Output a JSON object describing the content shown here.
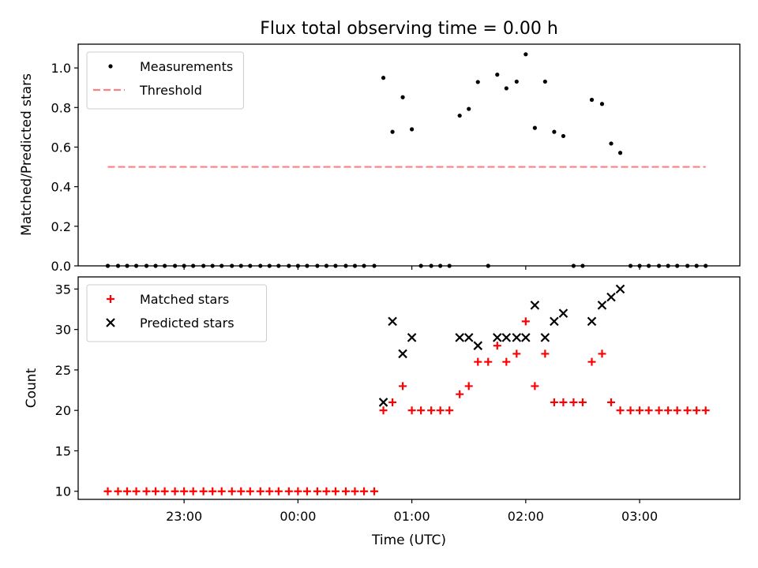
{
  "chart_data": [
    {
      "type": "scatter",
      "title": "Flux total observing time = 0.00 h",
      "xlabel": "",
      "ylabel": "Matched/Predicted stars",
      "ylim": [
        0,
        1.12
      ],
      "yticks": [
        0.0,
        0.2,
        0.4,
        0.6,
        0.8,
        1.0
      ],
      "ytick_labels": [
        "0.0",
        "0.2",
        "0.4",
        "0.6",
        "0.8",
        "1.0"
      ],
      "legend_position": "top-left",
      "series": [
        {
          "name": "Measurements",
          "marker": "dot",
          "color": "#000000",
          "points": [
            [
              -1.67,
              0
            ],
            [
              -1.58,
              0
            ],
            [
              -1.5,
              0
            ],
            [
              -1.42,
              0
            ],
            [
              -1.33,
              0
            ],
            [
              -1.25,
              0
            ],
            [
              -1.17,
              0
            ],
            [
              -1.08,
              0
            ],
            [
              -1.0,
              0
            ],
            [
              -0.92,
              0
            ],
            [
              -0.83,
              0
            ],
            [
              -0.75,
              0
            ],
            [
              -0.67,
              0
            ],
            [
              -0.58,
              0
            ],
            [
              -0.5,
              0
            ],
            [
              -0.42,
              0
            ],
            [
              -0.33,
              0
            ],
            [
              -0.25,
              0
            ],
            [
              -0.17,
              0
            ],
            [
              -0.08,
              0
            ],
            [
              0.0,
              0
            ],
            [
              0.08,
              0
            ],
            [
              0.17,
              0
            ],
            [
              0.25,
              0
            ],
            [
              0.33,
              0
            ],
            [
              0.42,
              0
            ],
            [
              0.5,
              0
            ],
            [
              0.58,
              0
            ],
            [
              0.67,
              0
            ],
            [
              0.75,
              0.95
            ],
            [
              0.83,
              0.677
            ],
            [
              0.92,
              0.852
            ],
            [
              1.0,
              0.69
            ],
            [
              1.08,
              0
            ],
            [
              1.17,
              0
            ],
            [
              1.25,
              0
            ],
            [
              1.33,
              0
            ],
            [
              1.42,
              0.759
            ],
            [
              1.5,
              0.793
            ],
            [
              1.58,
              0.929
            ],
            [
              1.67,
              0
            ],
            [
              1.75,
              0.966
            ],
            [
              1.83,
              0.897
            ],
            [
              1.92,
              0.931
            ],
            [
              2.0,
              1.069
            ],
            [
              2.08,
              0.697
            ],
            [
              2.17,
              0.931
            ],
            [
              2.25,
              0.677
            ],
            [
              2.33,
              0.656
            ],
            [
              2.42,
              0
            ],
            [
              2.5,
              0
            ],
            [
              2.58,
              0.839
            ],
            [
              2.67,
              0.818
            ],
            [
              2.75,
              0.618
            ],
            [
              2.83,
              0.571
            ],
            [
              2.92,
              0
            ],
            [
              3.0,
              0
            ],
            [
              3.08,
              0
            ],
            [
              3.17,
              0
            ],
            [
              3.25,
              0
            ],
            [
              3.33,
              0
            ],
            [
              3.42,
              0
            ],
            [
              3.5,
              0
            ],
            [
              3.58,
              0
            ]
          ]
        },
        {
          "name": "Threshold",
          "marker": "dashed-line",
          "color": "#ff7f7f",
          "points": [
            [
              -1.67,
              0.5
            ],
            [
              3.58,
              0.5
            ]
          ]
        }
      ]
    },
    {
      "type": "scatter",
      "title": "",
      "xlabel": "Time (UTC)",
      "ylabel": "Count",
      "ylim": [
        9.0,
        36.5
      ],
      "yticks": [
        10,
        15,
        20,
        25,
        30,
        35
      ],
      "ytick_labels": [
        "10",
        "15",
        "20",
        "25",
        "30",
        "35"
      ],
      "xlim": [
        -1.93,
        3.88
      ],
      "x_unit": "hours since 00:00 UTC",
      "xticks": [
        -1.0,
        0.0,
        1.0,
        2.0,
        3.0
      ],
      "xtick_labels": [
        "23:00",
        "00:00",
        "01:00",
        "02:00",
        "03:00"
      ],
      "legend_position": "top-left",
      "series": [
        {
          "name": "Matched stars",
          "marker": "plus",
          "color": "#ff0000",
          "points": [
            [
              -1.67,
              10
            ],
            [
              -1.58,
              10
            ],
            [
              -1.5,
              10
            ],
            [
              -1.42,
              10
            ],
            [
              -1.33,
              10
            ],
            [
              -1.25,
              10
            ],
            [
              -1.17,
              10
            ],
            [
              -1.08,
              10
            ],
            [
              -1.0,
              10
            ],
            [
              -0.92,
              10
            ],
            [
              -0.83,
              10
            ],
            [
              -0.75,
              10
            ],
            [
              -0.67,
              10
            ],
            [
              -0.58,
              10
            ],
            [
              -0.5,
              10
            ],
            [
              -0.42,
              10
            ],
            [
              -0.33,
              10
            ],
            [
              -0.25,
              10
            ],
            [
              -0.17,
              10
            ],
            [
              -0.08,
              10
            ],
            [
              0.0,
              10
            ],
            [
              0.08,
              10
            ],
            [
              0.17,
              10
            ],
            [
              0.25,
              10
            ],
            [
              0.33,
              10
            ],
            [
              0.42,
              10
            ],
            [
              0.5,
              10
            ],
            [
              0.58,
              10
            ],
            [
              0.67,
              10
            ],
            [
              0.75,
              20
            ],
            [
              0.83,
              21
            ],
            [
              0.92,
              23
            ],
            [
              1.0,
              20
            ],
            [
              1.08,
              20
            ],
            [
              1.17,
              20
            ],
            [
              1.25,
              20
            ],
            [
              1.33,
              20
            ],
            [
              1.42,
              22
            ],
            [
              1.5,
              23
            ],
            [
              1.58,
              26
            ],
            [
              1.67,
              26
            ],
            [
              1.75,
              28
            ],
            [
              1.83,
              26
            ],
            [
              1.92,
              27
            ],
            [
              2.0,
              31
            ],
            [
              2.08,
              23
            ],
            [
              2.17,
              27
            ],
            [
              2.25,
              21
            ],
            [
              2.33,
              21
            ],
            [
              2.42,
              21
            ],
            [
              2.5,
              21
            ],
            [
              2.58,
              26
            ],
            [
              2.67,
              27
            ],
            [
              2.75,
              21
            ],
            [
              2.83,
              20
            ],
            [
              2.92,
              20
            ],
            [
              3.0,
              20
            ],
            [
              3.08,
              20
            ],
            [
              3.17,
              20
            ],
            [
              3.25,
              20
            ],
            [
              3.33,
              20
            ],
            [
              3.42,
              20
            ],
            [
              3.5,
              20
            ],
            [
              3.58,
              20
            ]
          ]
        },
        {
          "name": "Predicted stars",
          "marker": "x",
          "color": "#000000",
          "points": [
            [
              0.75,
              21
            ],
            [
              0.83,
              31
            ],
            [
              0.92,
              27
            ],
            [
              1.0,
              29
            ],
            [
              1.42,
              29
            ],
            [
              1.5,
              29
            ],
            [
              1.58,
              28
            ],
            [
              1.75,
              29
            ],
            [
              1.83,
              29
            ],
            [
              1.92,
              29
            ],
            [
              2.0,
              29
            ],
            [
              2.08,
              33
            ],
            [
              2.17,
              29
            ],
            [
              2.25,
              31
            ],
            [
              2.33,
              32
            ],
            [
              2.58,
              31
            ],
            [
              2.67,
              33
            ],
            [
              2.75,
              34
            ],
            [
              2.83,
              35
            ]
          ]
        }
      ]
    }
  ]
}
